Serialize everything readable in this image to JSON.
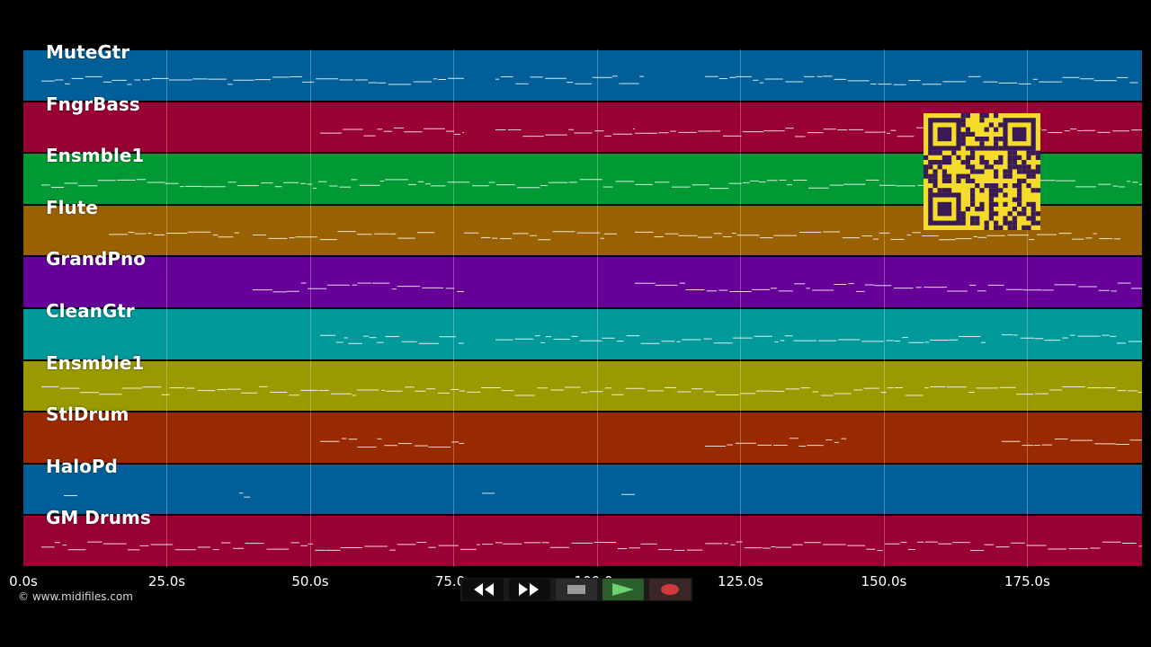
{
  "tracks": [
    {
      "name": "MuteGtr",
      "color": "#005f99"
    },
    {
      "name": "FngrBass",
      "color": "#990033"
    },
    {
      "name": "Ensmble1",
      "color": "#009933"
    },
    {
      "name": "Flute",
      "color": "#996100"
    },
    {
      "name": "GrandPno",
      "color": "#660099"
    },
    {
      "name": "CleanGtr",
      "color": "#009999"
    },
    {
      "name": "Ensmble1",
      "color": "#999900"
    },
    {
      "name": "StlDrum",
      "color": "#992900"
    },
    {
      "name": "HaloPd",
      "color": "#005f99"
    },
    {
      "name": "GM Drums",
      "color": "#990033"
    }
  ],
  "timeline": {
    "ticks": [
      "0.0s",
      "25.0s",
      "50.0s",
      "75.0s",
      "100.0s",
      "125.0s",
      "150.0s",
      "175.0s"
    ],
    "tick_values": [
      0,
      25,
      50,
      75,
      100,
      125,
      150,
      175
    ],
    "max_seconds": 195
  },
  "copyright": "© www.midifiles.com",
  "transport": {
    "rewind_icon": "rewind-icon",
    "forward_icon": "fast-forward-icon",
    "stop_icon": "stop-icon",
    "play_icon": "play-icon",
    "record_icon": "record-icon"
  },
  "qr_code": {
    "color": "#f5dc2a",
    "module_color": "#3a1a55"
  }
}
